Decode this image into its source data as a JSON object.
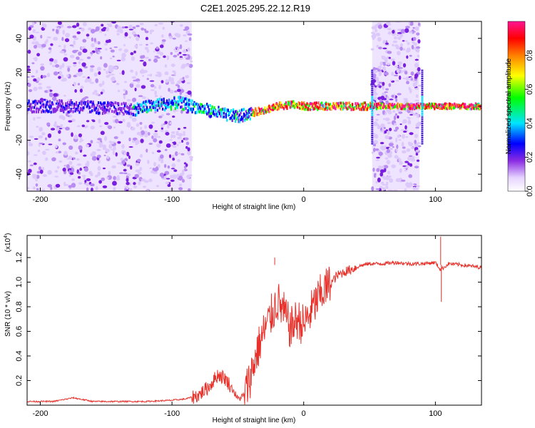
{
  "title": "C2E1.2025.295.22.12.R19",
  "colors": {
    "snr_line": "#e8312a",
    "axis": "#000000"
  },
  "colorbar": {
    "label": "Normalized spectral amplitude",
    "range": [
      0,
      1
    ],
    "ticks": [
      "0.0",
      "0.2",
      "0.4",
      "0.6",
      "0.8"
    ],
    "tick_values": [
      0.0,
      0.2,
      0.4,
      0.6,
      0.8
    ],
    "colormap": [
      "#ffffff",
      "#e6d3ff",
      "#8a2be2",
      "#0000ff",
      "#00e5ff",
      "#00ff00",
      "#ffff00",
      "#ff7f00",
      "#ff0000",
      "#ff1493"
    ]
  },
  "chart_data": [
    {
      "type": "heatmap",
      "xlabel": "Height of straight line (km)",
      "ylabel": "Frequency (Hz)",
      "xlim": [
        -210,
        135
      ],
      "ylim": [
        -50,
        50
      ],
      "xticks": [
        -200,
        -100,
        0,
        100
      ],
      "xtick_labels": [
        "-200",
        "-100",
        "0",
        "100"
      ],
      "yticks": [
        -40,
        -20,
        0,
        20,
        40
      ],
      "ytick_labels": [
        "-40",
        "-20",
        "0",
        "20",
        "40"
      ],
      "center_frequency_track": {
        "x": [
          -210,
          -180,
          -150,
          -130,
          -110,
          -95,
          -85,
          -70,
          -60,
          -50,
          -40,
          -30,
          -20,
          -10,
          0,
          20,
          40,
          50
        ],
        "y": [
          0,
          0,
          -1,
          -2,
          1,
          2,
          0,
          -3,
          -5,
          -6,
          -4,
          -2,
          0,
          1,
          0,
          0,
          0,
          0
        ]
      },
      "noise_bands_km": [
        [
          -210,
          -85
        ],
        [
          52,
          88
        ]
      ],
      "transient_events_km": [
        52,
        90
      ]
    },
    {
      "type": "line",
      "xlabel": "Height of straight line (km)",
      "ylabel": "SNR (10 * v/v)",
      "y_multiplier_label": "(x10",
      "y_multiplier_exp": "4",
      "y_multiplier_close": ")",
      "xlim": [
        -210,
        135
      ],
      "ylim": [
        0,
        1.38
      ],
      "xticks": [
        -200,
        -100,
        0,
        100
      ],
      "xtick_labels": [
        "-200",
        "-100",
        "0",
        "100"
      ],
      "yticks": [
        0.2,
        0.4,
        0.6,
        0.8,
        1.0,
        1.2
      ],
      "ytick_labels": [
        "0.2",
        "0.4",
        "0.6",
        "0.8",
        "1.0",
        "1.2"
      ],
      "series": [
        {
          "x": [
            -210,
            -190,
            -175,
            -160,
            -140,
            -120,
            -100,
            -90,
            -80,
            -72,
            -65,
            -60,
            -55,
            -50,
            -45,
            -40,
            -35,
            -30,
            -25,
            -20,
            -15,
            -10,
            -5,
            0,
            5,
            10,
            15,
            20,
            25,
            30,
            35,
            40,
            45,
            50,
            60,
            70,
            80,
            90,
            100,
            104,
            110,
            120,
            135
          ],
          "y": [
            0.03,
            0.03,
            0.06,
            0.03,
            0.03,
            0.03,
            0.04,
            0.05,
            0.08,
            0.15,
            0.25,
            0.22,
            0.15,
            0.05,
            0.08,
            0.25,
            0.45,
            0.6,
            0.72,
            0.85,
            0.75,
            0.62,
            0.7,
            0.65,
            0.75,
            0.85,
            0.93,
            0.98,
            1.05,
            1.08,
            1.1,
            1.12,
            1.14,
            1.15,
            1.15,
            1.16,
            1.15,
            1.15,
            1.16,
            1.1,
            1.15,
            1.14,
            1.12
          ]
        }
      ],
      "spikes": [
        {
          "x": -22,
          "y": 1.2
        },
        {
          "x": 104,
          "y": 1.37
        },
        {
          "x": 104.5,
          "y": 0.84
        }
      ]
    }
  ]
}
